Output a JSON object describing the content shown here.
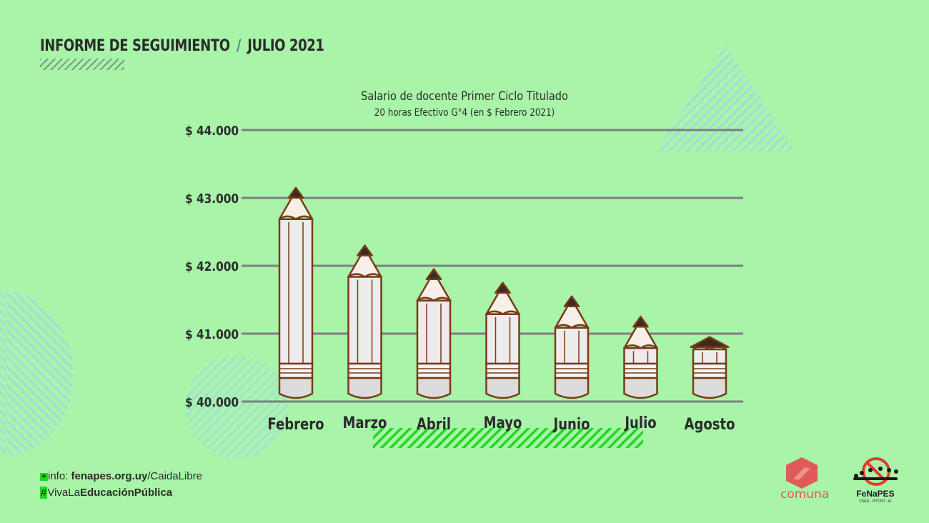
{
  "header": {
    "left": "INFORME DE SEGUIMIENTO",
    "sep": "/",
    "right": "JULIO 2021"
  },
  "footer": {
    "info_plus": "+",
    "info_prefix": "info: ",
    "info_domain": "fenapes.org.uy",
    "info_path": "/CaidaLibre",
    "hashtag_hash": "#",
    "hashtag_a": "VivaLa",
    "hashtag_b": "EducaciónPública"
  },
  "logos": {
    "comuna": "comuna",
    "fenapes": "FeNaPES",
    "fenapes_sub": "CSEU - PITCNT - IE",
    "comuna_color": "#e05a58"
  },
  "chart_data": {
    "type": "bar",
    "title": "Salario de docente Primer Ciclo Titulado",
    "subtitle": "20 horas Efectivo G°4 (en $ Febrero 2021)",
    "categories": [
      "Febrero",
      "Marzo",
      "Abril",
      "Mayo",
      "Junio",
      "Julio",
      "Agosto"
    ],
    "values": [
      43150,
      42300,
      41950,
      41750,
      41550,
      41250,
      40950
    ],
    "ylim": [
      40000,
      44000
    ],
    "yticks": [
      40000,
      41000,
      42000,
      43000,
      44000
    ],
    "ytick_labels": [
      "$ 40.000",
      "$ 41.000",
      "$ 42.000",
      "$ 43.000",
      "$ 44.000"
    ],
    "xlabel": "",
    "ylabel": "",
    "grid": true,
    "bar_style": "pencil"
  },
  "colors": {
    "background": "#a8f4a8",
    "gridline": "#7e7e7e",
    "accent_green": "#1fd81f",
    "pencil_outline": "#7a3a1a",
    "pencil_body": "#ececec",
    "text": "#2b2b2b"
  }
}
